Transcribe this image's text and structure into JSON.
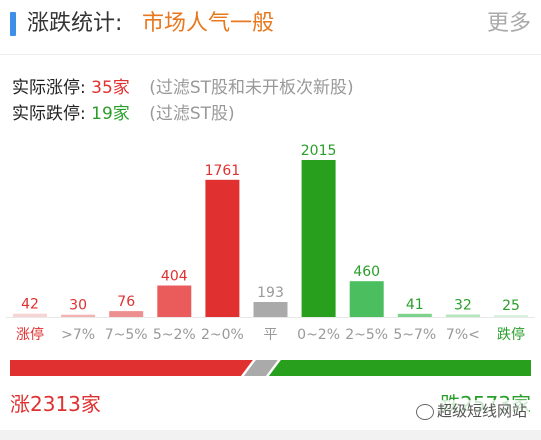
{
  "header": {
    "title": "涨跌统计:",
    "mood": "市场人气一般",
    "more": "更多"
  },
  "stats": {
    "limit_up": {
      "label": "实际涨停:",
      "count": "35家",
      "note": "(过滤ST股和未开板次新股)"
    },
    "limit_down": {
      "label": "实际跌停:",
      "count": "19家",
      "note": "(过滤ST股)"
    }
  },
  "chart_data": {
    "type": "bar",
    "categories": [
      "涨停",
      ">7%",
      "7~5%",
      "5~2%",
      "2~0%",
      "平",
      "0~2%",
      "2~5%",
      "5~7%",
      "7%<",
      "跌停"
    ],
    "values": [
      42,
      30,
      76,
      404,
      1761,
      193,
      2015,
      460,
      41,
      32,
      25
    ],
    "bar_colors": [
      "#f7d5d5",
      "#f3b3b3",
      "#ee8f8f",
      "#ea5c5c",
      "#e03030",
      "#aaaaaa",
      "#28a01e",
      "#4bbf5f",
      "#7ed38c",
      "#b4e6bc",
      "#d6f2da"
    ],
    "label_colors": [
      "#e03030",
      "#e03030",
      "#e03030",
      "#e03030",
      "#e03030",
      "#999999",
      "#2a9e2a",
      "#2a9e2a",
      "#2a9e2a",
      "#2a9e2a",
      "#2a9e2a"
    ],
    "cat_colors": [
      "#e03030",
      "#999999",
      "#999999",
      "#999999",
      "#999999",
      "#999999",
      "#999999",
      "#999999",
      "#999999",
      "#999999",
      "#2a9e2a"
    ],
    "ylim": [
      0,
      2015
    ]
  },
  "ratio": {
    "up_fraction": 0.47,
    "up_color": "#e03030",
    "flat_color": "#aaaaaa",
    "down_color": "#28a01e"
  },
  "footer": {
    "up": "涨2313家",
    "down": "跌2573家",
    "watermark": "超级短线网站"
  }
}
